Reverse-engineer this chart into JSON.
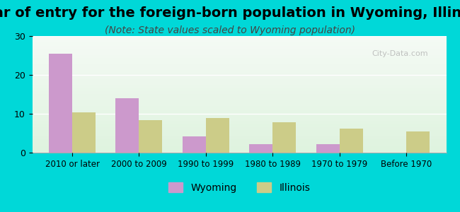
{
  "title": "Year of entry for the foreign-born population in Wyoming, Illinois",
  "subtitle": "(Note: State values scaled to Wyoming population)",
  "categories": [
    "2010 or later",
    "2000 to 2009",
    "1990 to 1999",
    "1980 to 1989",
    "1970 to 1979",
    "Before 1970"
  ],
  "wyoming_values": [
    25.5,
    14.0,
    4.2,
    2.2,
    2.2,
    0.0
  ],
  "illinois_values": [
    10.3,
    8.3,
    9.0,
    7.9,
    6.1,
    5.5
  ],
  "wyoming_color": "#cc99cc",
  "illinois_color": "#cccc88",
  "background_outer": "#00d8d8",
  "background_inner": "#e8f5e8",
  "ylim": [
    0,
    30
  ],
  "yticks": [
    0,
    10,
    20,
    30
  ],
  "title_fontsize": 14,
  "subtitle_fontsize": 10,
  "bar_width": 0.35,
  "legend_wyoming": "Wyoming",
  "legend_illinois": "Illinois"
}
